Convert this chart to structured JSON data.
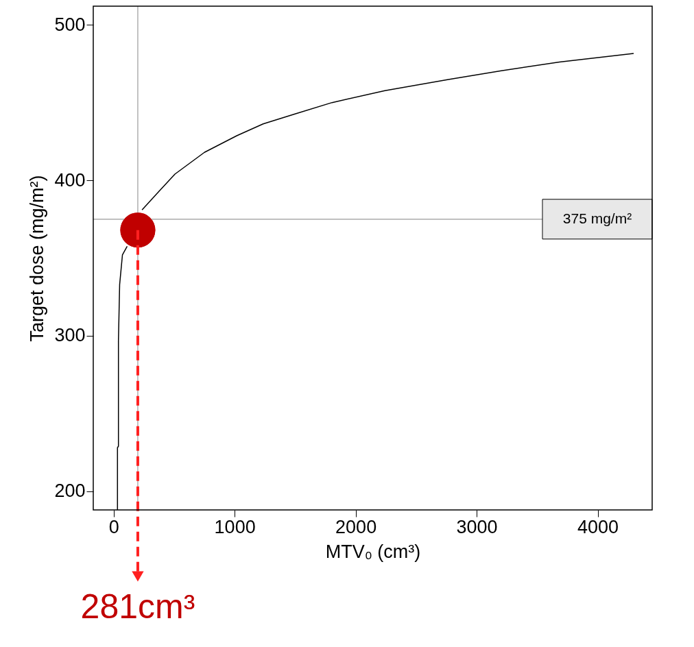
{
  "chart_data": {
    "type": "line",
    "xlabel": "MTV₀ (cm³)",
    "ylabel": "Target dose (mg/m²)",
    "xlim": [
      -168,
      4450
    ],
    "ylim": [
      188,
      512
    ],
    "xticks": [
      0,
      1000,
      2000,
      3000,
      4000
    ],
    "yticks": [
      200,
      300,
      400,
      500
    ],
    "grid": false,
    "marker": "none",
    "line_style": "solid",
    "series": [
      {
        "color": "#000000",
        "x": [
          32,
          32,
          40,
          40,
          50,
          73,
          112,
          200,
          235,
          372,
          507,
          751,
          1018,
          1236,
          1499,
          1805,
          2242,
          2766,
          3203,
          3684,
          4297
        ],
        "values": [
          188,
          228,
          229,
          297,
          333,
          352,
          357.5,
          null,
          381,
          392.6,
          404,
          418,
          428.7,
          436.3,
          442.7,
          450,
          457.7,
          464.8,
          470.5,
          476.1,
          481.6
        ]
      },
      {
        "type": "scatter",
        "color": "#c00000",
        "marker": "circle",
        "x": [
          200
        ],
        "values": [
          368
        ]
      }
    ],
    "ref_lines": [
      {
        "axis": "x",
        "value": 200,
        "color": "#999999"
      },
      {
        "axis": "y",
        "value": 375,
        "label": "375 mg/m²",
        "color": "#999999"
      }
    ],
    "annotations": [
      "281cm³"
    ]
  }
}
